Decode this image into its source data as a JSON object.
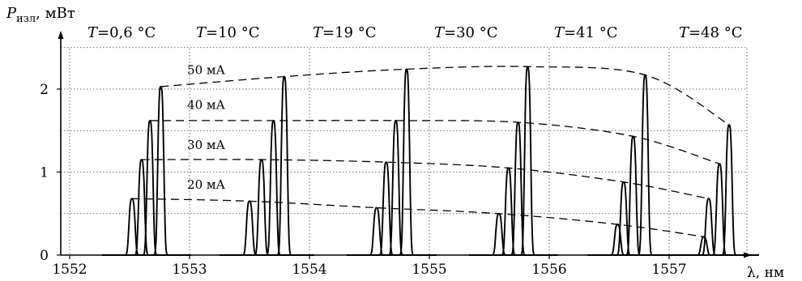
{
  "chart_data": {
    "type": "line",
    "ylabel_main": "P",
    "ylabel_sub": "изл",
    "ylabel_unit": ", мВт",
    "xlabel": "λ, нм",
    "xlim": [
      1552,
      1557.9
    ],
    "ylim": [
      0,
      2.55
    ],
    "grid": true,
    "x_ticks": [
      "1552",
      "1553",
      "1554",
      "1555",
      "1556",
      "1557"
    ],
    "x_tick_values": [
      1552,
      1553,
      1554,
      1555,
      1556,
      1557
    ],
    "y_ticks": [
      "0",
      "1",
      "2"
    ],
    "y_tick_values": [
      0,
      1,
      2
    ],
    "temperatures": [
      {
        "label_var": "T",
        "label_val": "= 0,6 °C",
        "peaks": [
          {
            "current": "20 мА",
            "x": 1552.52,
            "y": 0.68
          },
          {
            "current": "30 мА",
            "x": 1552.6,
            "y": 1.15
          },
          {
            "current": "40 мА",
            "x": 1552.67,
            "y": 1.62
          },
          {
            "current": "50 мА",
            "x": 1552.76,
            "y": 2.03
          }
        ]
      },
      {
        "label_var": "T",
        "label_val": "= 10 °C",
        "peaks": [
          {
            "current": "20 мА",
            "x": 1553.5,
            "y": 0.65
          },
          {
            "current": "30 мА",
            "x": 1553.6,
            "y": 1.15
          },
          {
            "current": "40 мА",
            "x": 1553.7,
            "y": 1.62
          },
          {
            "current": "50 мА",
            "x": 1553.79,
            "y": 2.15
          }
        ]
      },
      {
        "label_var": "T",
        "label_val": "= 19 °C",
        "peaks": [
          {
            "current": "20 мА",
            "x": 1554.56,
            "y": 0.57
          },
          {
            "current": "30 мА",
            "x": 1554.64,
            "y": 1.12
          },
          {
            "current": "40 мА",
            "x": 1554.72,
            "y": 1.62
          },
          {
            "current": "50 мА",
            "x": 1554.81,
            "y": 2.24
          }
        ]
      },
      {
        "label_var": "T",
        "label_val": "= 30 °C",
        "peaks": [
          {
            "current": "20 мА",
            "x": 1555.58,
            "y": 0.5
          },
          {
            "current": "30 мА",
            "x": 1555.66,
            "y": 1.05
          },
          {
            "current": "40 мА",
            "x": 1555.74,
            "y": 1.6
          },
          {
            "current": "50 мА",
            "x": 1555.82,
            "y": 2.27
          }
        ]
      },
      {
        "label_var": "T",
        "label_val": "= 41 °C",
        "peaks": [
          {
            "current": "20 мА",
            "x": 1556.57,
            "y": 0.37
          },
          {
            "current": "30 мА",
            "x": 1556.62,
            "y": 0.88
          },
          {
            "current": "40 мА",
            "x": 1556.7,
            "y": 1.43
          },
          {
            "current": "50 мА",
            "x": 1556.8,
            "y": 2.17
          }
        ]
      },
      {
        "label_var": "T",
        "label_val": "= 48 °C",
        "peaks": [
          {
            "current": "20 мА",
            "x": 1557.29,
            "y": 0.22
          },
          {
            "current": "30 мА",
            "x": 1557.33,
            "y": 0.68
          },
          {
            "current": "40 мА",
            "x": 1557.42,
            "y": 1.1
          },
          {
            "current": "50 мА",
            "x": 1557.5,
            "y": 1.57
          }
        ]
      }
    ],
    "currents": [
      "20 мА",
      "30 мА",
      "40 мА",
      "50 мА"
    ],
    "annotations": [
      {
        "text": "20 мА",
        "x": 1552.98,
        "y": 0.8
      },
      {
        "text": "30 мА",
        "x": 1552.98,
        "y": 1.28
      },
      {
        "text": "40 мА",
        "x": 1552.98,
        "y": 1.76
      },
      {
        "text": "50 мА",
        "x": 1552.98,
        "y": 2.18
      }
    ]
  }
}
